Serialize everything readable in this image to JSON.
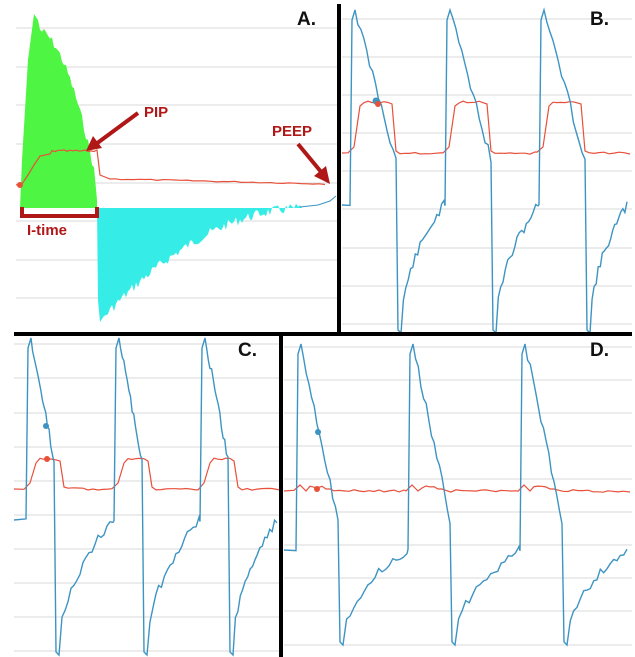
{
  "colors": {
    "pressure": "#e8503a",
    "flow": "#3d94c3",
    "insp_fill": "#4ef542",
    "exp_fill": "#35ece6",
    "annotation": "#b01818",
    "divider": "#000000",
    "grid": "#d9d9d9"
  },
  "chart_data": [
    {
      "panel": "A.",
      "type": "area",
      "annotations": [
        "PIP",
        "PEEP",
        "I-time"
      ],
      "series": [
        {
          "values": [
            [
              0,
              0.12
            ],
            [
              0.2,
              0.55
            ],
            [
              0.8,
              0.72
            ],
            [
              1.0,
              0.12
            ],
            [
              1.5,
              0.1
            ],
            [
              4.0,
              0.08
            ]
          ]
        },
        {
          "values": [
            [
              0,
              0.0
            ],
            [
              0.2,
              2.4
            ],
            [
              0.9,
              0.8
            ],
            [
              1.0,
              -0.0
            ],
            [
              1.05,
              -1.6
            ],
            [
              2.5,
              -0.3
            ],
            [
              3.9,
              0.0
            ],
            [
              4.0,
              0.15
            ]
          ]
        }
      ]
    },
    {
      "panel": "B.",
      "type": "line",
      "series": [
        {
          "values": [
            [
              0,
              0.4
            ],
            [
              0.15,
              0.65
            ],
            [
              0.6,
              0.68
            ],
            [
              0.7,
              0.42
            ],
            [
              3.0,
              0.38
            ]
          ]
        },
        {
          "values": [
            [
              0,
              -0.1
            ],
            [
              0.1,
              1.8
            ],
            [
              0.65,
              -2.2
            ],
            [
              0.75,
              -1.5
            ],
            [
              1.0,
              -0.2
            ]
          ]
        }
      ]
    },
    {
      "panel": "C.",
      "type": "line",
      "series": [
        {
          "values": [
            [
              0,
              0.4
            ],
            [
              0.15,
              0.6
            ],
            [
              0.6,
              0.6
            ],
            [
              0.7,
              0.4
            ],
            [
              3.0,
              0.38
            ]
          ]
        },
        {
          "values": [
            [
              0,
              0.1
            ],
            [
              0.1,
              2.0
            ],
            [
              0.6,
              0.1
            ],
            [
              0.65,
              -2.2
            ],
            [
              1.0,
              -0.1
            ]
          ]
        }
      ]
    },
    {
      "panel": "D.",
      "type": "line",
      "series": [
        {
          "values": [
            [
              0,
              0.4
            ],
            [
              0.1,
              0.5
            ],
            [
              0.5,
              0.5
            ],
            [
              0.6,
              0.4
            ],
            [
              3.0,
              0.38
            ]
          ]
        },
        {
          "values": [
            [
              0,
              -0.8
            ],
            [
              0.1,
              2.0
            ],
            [
              0.55,
              -0.5
            ],
            [
              0.85,
              -2.2
            ],
            [
              1.0,
              -0.9
            ]
          ]
        }
      ]
    }
  ]
}
